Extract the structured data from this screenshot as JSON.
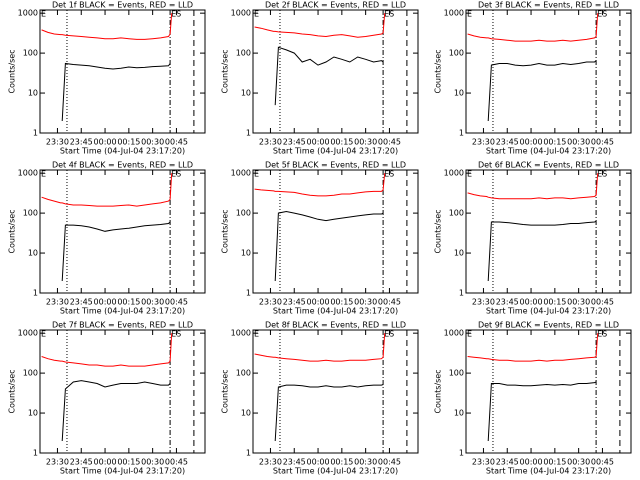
{
  "chart_data": [
    {
      "type": "line",
      "title": "Det 1f BLACK = Events, RED = LLD",
      "xlabel": "Start Time (04-Jul-04 23:17:20)",
      "ylabel": "Counts/sec",
      "log_y": true,
      "x": [
        "23:20",
        "23:24",
        "23:28",
        "23:32",
        "23:33",
        "23:35",
        "23:40",
        "23:45",
        "23:50",
        "23:55",
        "00:00",
        "00:05",
        "00:10",
        "00:15",
        "00:20",
        "00:25",
        "00:30",
        "00:35",
        "00:40",
        "00:41",
        "00:42"
      ],
      "xlim": [
        "23:19",
        "01:03"
      ],
      "xticks": [
        "23:30",
        "23:45",
        "00:00",
        "00:15",
        "00:30",
        "00:45"
      ],
      "ylim": [
        1,
        1200
      ],
      "yticks": [
        1,
        10,
        100,
        1000
      ],
      "series": [
        {
          "color": "#ff0000",
          "values": [
            380,
            330,
            300,
            290,
            290,
            280,
            270,
            260,
            250,
            240,
            230,
            230,
            240,
            230,
            220,
            220,
            230,
            240,
            260,
            300,
            1000
          ]
        },
        {
          "color": "#000000",
          "values": [
            null,
            null,
            null,
            null,
            2,
            55,
            52,
            50,
            48,
            45,
            42,
            40,
            42,
            45,
            43,
            44,
            46,
            47,
            48,
            55,
            null
          ]
        }
      ],
      "vlines": [
        {
          "x": "23:36",
          "style": "dotted"
        },
        {
          "x": "00:41",
          "style": "dashdot"
        },
        {
          "x": "00:56",
          "style": "dashed"
        }
      ],
      "annotations": [
        {
          "text": "E",
          "x": "23:19"
        },
        {
          "text": "ES",
          "x": "00:41"
        }
      ]
    },
    {
      "type": "line",
      "title": "Det 2f BLACK = Events, RED = LLD",
      "xlabel": "Start Time (04-Jul-04 23:17:20)",
      "ylabel": "Counts/sec",
      "log_y": true,
      "x": [
        "23:20",
        "23:24",
        "23:28",
        "23:32",
        "23:33",
        "23:35",
        "23:40",
        "23:45",
        "23:50",
        "23:55",
        "00:00",
        "00:05",
        "00:10",
        "00:15",
        "00:20",
        "00:25",
        "00:30",
        "00:35",
        "00:40",
        "00:41",
        "00:42"
      ],
      "xlim": [
        "23:19",
        "01:03"
      ],
      "xticks": [
        "23:30",
        "23:45",
        "00:00",
        "00:15",
        "00:30",
        "00:45"
      ],
      "ylim": [
        1,
        1200
      ],
      "yticks": [
        1,
        10,
        100,
        1000
      ],
      "series": [
        {
          "color": "#ff0000",
          "values": [
            450,
            420,
            380,
            350,
            350,
            340,
            330,
            320,
            300,
            290,
            270,
            260,
            280,
            290,
            270,
            250,
            260,
            280,
            300,
            320,
            1000
          ]
        },
        {
          "color": "#000000",
          "values": [
            null,
            null,
            null,
            null,
            5,
            140,
            120,
            100,
            60,
            70,
            50,
            60,
            80,
            70,
            60,
            80,
            70,
            60,
            65,
            60,
            null
          ]
        }
      ],
      "vlines": [
        {
          "x": "23:36",
          "style": "dotted"
        },
        {
          "x": "00:41",
          "style": "dashdot"
        },
        {
          "x": "00:56",
          "style": "dashed"
        }
      ],
      "annotations": [
        {
          "text": "E",
          "x": "23:19"
        },
        {
          "text": "ES",
          "x": "00:41"
        }
      ]
    },
    {
      "type": "line",
      "title": "Det 3f BLACK = Events, RED = LLD",
      "xlabel": "Start Time (04-Jul-04 23:17:20)",
      "ylabel": "Counts/sec",
      "log_y": true,
      "x": [
        "23:20",
        "23:24",
        "23:28",
        "23:32",
        "23:33",
        "23:35",
        "23:40",
        "23:45",
        "23:50",
        "23:55",
        "00:00",
        "00:05",
        "00:10",
        "00:15",
        "00:20",
        "00:25",
        "00:30",
        "00:35",
        "00:40",
        "00:41",
        "00:42"
      ],
      "xlim": [
        "23:19",
        "01:03"
      ],
      "xticks": [
        "23:30",
        "23:45",
        "00:00",
        "00:15",
        "00:30",
        "00:45"
      ],
      "ylim": [
        1,
        1200
      ],
      "yticks": [
        1,
        10,
        100,
        1000
      ],
      "series": [
        {
          "color": "#ff0000",
          "values": [
            300,
            270,
            250,
            240,
            240,
            230,
            220,
            210,
            200,
            200,
            200,
            210,
            200,
            200,
            210,
            200,
            210,
            220,
            240,
            260,
            1000
          ]
        },
        {
          "color": "#000000",
          "values": [
            null,
            null,
            null,
            null,
            2,
            50,
            55,
            55,
            50,
            48,
            50,
            55,
            50,
            50,
            55,
            52,
            55,
            60,
            60,
            65,
            null
          ]
        }
      ],
      "vlines": [
        {
          "x": "23:36",
          "style": "dotted"
        },
        {
          "x": "00:41",
          "style": "dashdot"
        },
        {
          "x": "00:56",
          "style": "dashed"
        }
      ],
      "annotations": [
        {
          "text": "E",
          "x": "23:19"
        },
        {
          "text": "ES",
          "x": "00:41"
        }
      ]
    },
    {
      "type": "line",
      "title": "Det 4f BLACK = Events, RED = LLD",
      "xlabel": "Start Time (04-Jul-04 23:17:20)",
      "ylabel": "Counts/sec",
      "log_y": true,
      "x": [
        "23:20",
        "23:24",
        "23:28",
        "23:32",
        "23:33",
        "23:35",
        "23:40",
        "23:45",
        "23:50",
        "23:55",
        "00:00",
        "00:05",
        "00:10",
        "00:15",
        "00:20",
        "00:25",
        "00:30",
        "00:35",
        "00:40",
        "00:41",
        "00:42"
      ],
      "xlim": [
        "23:19",
        "01:03"
      ],
      "xticks": [
        "23:30",
        "23:45",
        "00:00",
        "00:15",
        "00:30",
        "00:45"
      ],
      "ylim": [
        1,
        1200
      ],
      "yticks": [
        1,
        10,
        100,
        1000
      ],
      "series": [
        {
          "color": "#ff0000",
          "values": [
            250,
            220,
            200,
            180,
            180,
            170,
            160,
            160,
            155,
            150,
            150,
            150,
            155,
            160,
            150,
            160,
            170,
            180,
            200,
            220,
            1000
          ]
        },
        {
          "color": "#000000",
          "values": [
            null,
            null,
            null,
            null,
            2,
            50,
            50,
            48,
            45,
            40,
            35,
            38,
            40,
            42,
            45,
            48,
            50,
            52,
            55,
            60,
            null
          ]
        }
      ],
      "vlines": [
        {
          "x": "23:36",
          "style": "dotted"
        },
        {
          "x": "00:41",
          "style": "dashdot"
        },
        {
          "x": "00:56",
          "style": "dashed"
        }
      ],
      "annotations": [
        {
          "text": "E",
          "x": "23:19"
        },
        {
          "text": "ES",
          "x": "00:41"
        }
      ]
    },
    {
      "type": "line",
      "title": "Det 5f BLACK = Events, RED = LLD",
      "xlabel": "Start Time (04-Jul-04 23:17:20)",
      "ylabel": "Counts/sec",
      "log_y": true,
      "x": [
        "23:20",
        "23:24",
        "23:28",
        "23:32",
        "23:33",
        "23:35",
        "23:40",
        "23:45",
        "23:50",
        "23:55",
        "00:00",
        "00:05",
        "00:10",
        "00:15",
        "00:20",
        "00:25",
        "00:30",
        "00:35",
        "00:40",
        "00:41",
        "00:42"
      ],
      "xlim": [
        "23:19",
        "01:03"
      ],
      "xticks": [
        "23:30",
        "23:45",
        "00:00",
        "00:15",
        "00:30",
        "00:45"
      ],
      "ylim": [
        1,
        1200
      ],
      "yticks": [
        1,
        10,
        100,
        1000
      ],
      "series": [
        {
          "color": "#ff0000",
          "values": [
            400,
            380,
            370,
            360,
            350,
            350,
            340,
            330,
            300,
            280,
            270,
            270,
            280,
            300,
            300,
            320,
            340,
            350,
            350,
            380,
            1000
          ]
        },
        {
          "color": "#000000",
          "values": [
            null,
            null,
            null,
            null,
            2,
            100,
            110,
            100,
            90,
            80,
            70,
            65,
            70,
            75,
            80,
            85,
            90,
            95,
            95,
            100,
            null
          ]
        }
      ],
      "vlines": [
        {
          "x": "23:36",
          "style": "dotted"
        },
        {
          "x": "00:41",
          "style": "dashdot"
        },
        {
          "x": "00:56",
          "style": "dashed"
        }
      ],
      "annotations": [
        {
          "text": "E",
          "x": "23:19"
        },
        {
          "text": "ES",
          "x": "00:41"
        }
      ]
    },
    {
      "type": "line",
      "title": "Det 6f BLACK = Events, RED = LLD",
      "xlabel": "Start Time (04-Jul-04 23:17:20)",
      "ylabel": "Counts/sec",
      "log_y": true,
      "x": [
        "23:20",
        "23:24",
        "23:28",
        "23:32",
        "23:33",
        "23:35",
        "23:40",
        "23:45",
        "23:50",
        "23:55",
        "00:00",
        "00:05",
        "00:10",
        "00:15",
        "00:20",
        "00:25",
        "00:30",
        "00:35",
        "00:40",
        "00:41",
        "00:42"
      ],
      "xlim": [
        "23:19",
        "01:03"
      ],
      "xticks": [
        "23:30",
        "23:45",
        "00:00",
        "00:15",
        "00:30",
        "00:45"
      ],
      "ylim": [
        1,
        1200
      ],
      "yticks": [
        1,
        10,
        100,
        1000
      ],
      "series": [
        {
          "color": "#ff0000",
          "values": [
            320,
            290,
            270,
            260,
            250,
            240,
            230,
            230,
            230,
            230,
            230,
            240,
            230,
            240,
            240,
            230,
            240,
            250,
            260,
            280,
            1000
          ]
        },
        {
          "color": "#000000",
          "values": [
            null,
            null,
            null,
            null,
            2,
            60,
            60,
            58,
            55,
            52,
            50,
            50,
            50,
            50,
            52,
            55,
            55,
            58,
            60,
            62,
            null
          ]
        }
      ],
      "vlines": [
        {
          "x": "23:36",
          "style": "dotted"
        },
        {
          "x": "00:41",
          "style": "dashdot"
        },
        {
          "x": "00:56",
          "style": "dashed"
        }
      ],
      "annotations": [
        {
          "text": "E",
          "x": "23:19"
        },
        {
          "text": "ES",
          "x": "00:41"
        }
      ]
    },
    {
      "type": "line",
      "title": "Det 7f BLACK = Events, RED = LLD",
      "xlabel": "Start Time (04-Jul-04 23:17:20)",
      "ylabel": "Counts/sec",
      "log_y": true,
      "x": [
        "23:20",
        "23:24",
        "23:28",
        "23:32",
        "23:33",
        "23:35",
        "23:40",
        "23:45",
        "23:50",
        "23:55",
        "00:00",
        "00:05",
        "00:10",
        "00:15",
        "00:20",
        "00:25",
        "00:30",
        "00:35",
        "00:40",
        "00:41",
        "00:42"
      ],
      "xlim": [
        "23:19",
        "01:03"
      ],
      "xticks": [
        "23:30",
        "23:45",
        "00:00",
        "00:15",
        "00:30",
        "00:45"
      ],
      "ylim": [
        1,
        1200
      ],
      "yticks": [
        1,
        10,
        100,
        1000
      ],
      "series": [
        {
          "color": "#ff0000",
          "values": [
            260,
            230,
            210,
            200,
            200,
            190,
            180,
            170,
            160,
            160,
            150,
            150,
            160,
            150,
            150,
            150,
            160,
            170,
            180,
            200,
            1000
          ]
        },
        {
          "color": "#000000",
          "values": [
            null,
            null,
            null,
            null,
            2,
            40,
            60,
            65,
            60,
            55,
            45,
            50,
            55,
            55,
            55,
            60,
            55,
            50,
            50,
            55,
            null
          ]
        }
      ],
      "vlines": [
        {
          "x": "23:36",
          "style": "dotted"
        },
        {
          "x": "00:41",
          "style": "dashdot"
        },
        {
          "x": "00:56",
          "style": "dashed"
        }
      ],
      "annotations": [
        {
          "text": "E",
          "x": "23:19"
        },
        {
          "text": "ES",
          "x": "00:41"
        }
      ]
    },
    {
      "type": "line",
      "title": "Det 8f BLACK = Events, RED = LLD",
      "xlabel": "Start Time (04-Jul-04 23:17:20)",
      "ylabel": "Counts/sec",
      "log_y": true,
      "x": [
        "23:20",
        "23:24",
        "23:28",
        "23:32",
        "23:33",
        "23:35",
        "23:40",
        "23:45",
        "23:50",
        "23:55",
        "00:00",
        "00:05",
        "00:10",
        "00:15",
        "00:20",
        "00:25",
        "00:30",
        "00:35",
        "00:40",
        "00:41",
        "00:42"
      ],
      "xlim": [
        "23:19",
        "01:03"
      ],
      "xticks": [
        "23:30",
        "23:45",
        "00:00",
        "00:15",
        "00:30",
        "00:45"
      ],
      "ylim": [
        1,
        1200
      ],
      "yticks": [
        1,
        10,
        100,
        1000
      ],
      "series": [
        {
          "color": "#ff0000",
          "values": [
            300,
            280,
            260,
            250,
            250,
            240,
            230,
            220,
            210,
            200,
            200,
            210,
            200,
            200,
            210,
            210,
            210,
            220,
            230,
            250,
            1000
          ]
        },
        {
          "color": "#000000",
          "values": [
            null,
            null,
            null,
            null,
            2,
            45,
            50,
            50,
            48,
            45,
            45,
            48,
            45,
            45,
            48,
            45,
            48,
            50,
            50,
            52,
            null
          ]
        }
      ],
      "vlines": [
        {
          "x": "23:36",
          "style": "dotted"
        },
        {
          "x": "00:41",
          "style": "dashdot"
        },
        {
          "x": "00:56",
          "style": "dashed"
        }
      ],
      "annotations": [
        {
          "text": "E",
          "x": "23:19"
        },
        {
          "text": "ES",
          "x": "00:41"
        }
      ]
    },
    {
      "type": "line",
      "title": "Det 9f BLACK = Events, RED = LLD",
      "xlabel": "Start Time (04-Jul-04 23:17:20)",
      "ylabel": "Counts/sec",
      "log_y": true,
      "x": [
        "23:20",
        "23:24",
        "23:28",
        "23:32",
        "23:33",
        "23:35",
        "23:40",
        "23:45",
        "23:50",
        "23:55",
        "00:00",
        "00:05",
        "00:10",
        "00:15",
        "00:20",
        "00:25",
        "00:30",
        "00:35",
        "00:40",
        "00:41",
        "00:42"
      ],
      "xlim": [
        "23:19",
        "01:03"
      ],
      "xticks": [
        "23:30",
        "23:45",
        "00:00",
        "00:15",
        "00:30",
        "00:45"
      ],
      "ylim": [
        1,
        1200
      ],
      "yticks": [
        1,
        10,
        100,
        1000
      ],
      "series": [
        {
          "color": "#ff0000",
          "values": [
            260,
            250,
            240,
            230,
            230,
            220,
            210,
            210,
            200,
            200,
            200,
            210,
            200,
            210,
            210,
            220,
            230,
            240,
            250,
            260,
            1000
          ]
        },
        {
          "color": "#000000",
          "values": [
            null,
            null,
            null,
            null,
            2,
            55,
            55,
            50,
            50,
            48,
            48,
            50,
            52,
            50,
            52,
            50,
            55,
            55,
            58,
            60,
            null
          ]
        }
      ],
      "vlines": [
        {
          "x": "23:36",
          "style": "dotted"
        },
        {
          "x": "00:41",
          "style": "dashdot"
        },
        {
          "x": "00:56",
          "style": "dashed"
        }
      ],
      "annotations": [
        {
          "text": "E",
          "x": "23:19"
        },
        {
          "text": "ES",
          "x": "00:41"
        }
      ]
    }
  ]
}
